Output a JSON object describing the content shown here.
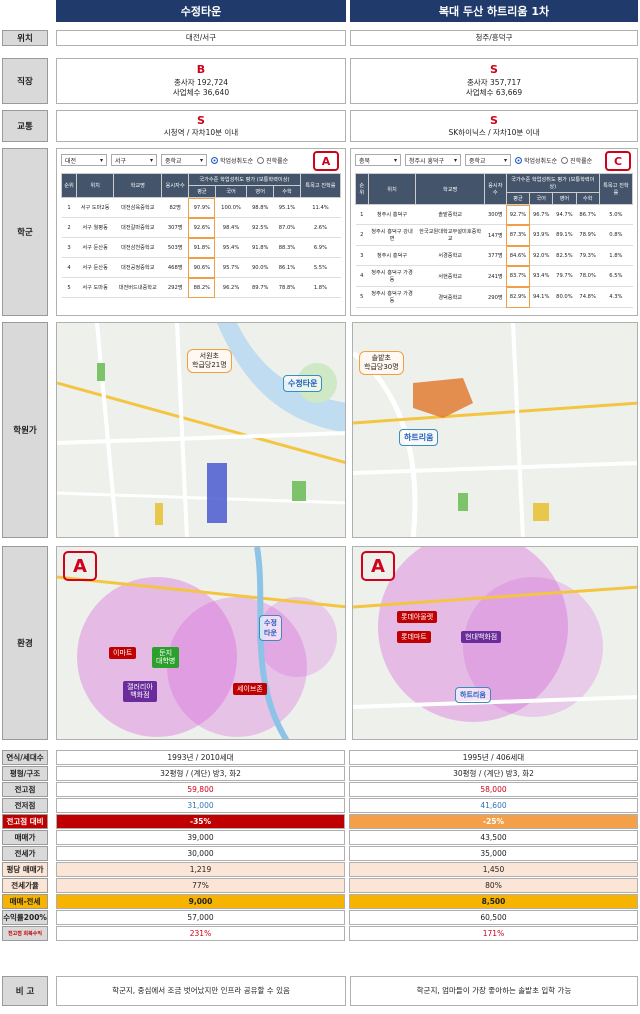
{
  "headers": {
    "left": "수정타운",
    "right": "복대 두산 하트리움 1차"
  },
  "labels": {
    "location": "위치",
    "job": "직장",
    "traffic": "교통",
    "school": "학군",
    "academy": "학원가",
    "environment": "환경"
  },
  "location": {
    "left": "대전/서구",
    "right": "청주/흥덕구"
  },
  "job": {
    "left": {
      "grade": "B",
      "employees": "종사자 192,724",
      "companies": "사업체수 36,640"
    },
    "right": {
      "grade": "S",
      "employees": "종사자 357,717",
      "companies": "사업체수 63,669"
    }
  },
  "traffic": {
    "left": {
      "grade": "S",
      "desc": "시청역 / 자차10분 이내"
    },
    "right": {
      "grade": "S",
      "desc": "SK하이닉스 / 자차10분 이내"
    }
  },
  "school": {
    "left": {
      "badge": "A",
      "filters": [
        "대전",
        "서구",
        "중학교"
      ],
      "radio_on": "학업성취도순",
      "radio_off": "진학률순",
      "head_group": "국가수준 학업성취도 평가 (보통학력이상)",
      "columns": [
        "순위",
        "위치",
        "학교명",
        "응시자수",
        "평균",
        "국어",
        "영어",
        "수학",
        "특목고 진학률"
      ],
      "rows": [
        [
          "1",
          "서구 도마2동",
          "대전삼육중학교",
          "82명",
          "97.9%",
          "100.0%",
          "98.8%",
          "95.1%",
          "11.4%"
        ],
        [
          "2",
          "서구 월평동",
          "대전갈마중학교",
          "307명",
          "92.6%",
          "98.4%",
          "92.5%",
          "87.0%",
          "2.6%"
        ],
        [
          "3",
          "서구 둔산동",
          "대전삼천중학교",
          "503명",
          "91.8%",
          "95.4%",
          "91.8%",
          "88.3%",
          "6.9%"
        ],
        [
          "4",
          "서구 둔산동",
          "대전공정중학교",
          "468명",
          "90.6%",
          "95.7%",
          "90.0%",
          "86.1%",
          "5.5%"
        ],
        [
          "5",
          "서구 도마동",
          "대전버드내중학교",
          "292명",
          "88.2%",
          "96.2%",
          "89.7%",
          "78.8%",
          "1.8%"
        ]
      ]
    },
    "right": {
      "badge": "C",
      "filters": [
        "충북",
        "청주시 흥덕구",
        "중학교"
      ],
      "radio_on": "학업성취도순",
      "radio_off": "진학률순",
      "head_group": "국가수준 학업성취도 평가 (보통학력이상)",
      "columns": [
        "순위",
        "위치",
        "학교명",
        "응시자수",
        "평균",
        "국어",
        "영어",
        "수학",
        "특목고 진학률"
      ],
      "rows": [
        [
          "1",
          "청주시 흥덕구",
          "솔밭중학교",
          "300명",
          "92.7%",
          "96.7%",
          "94.7%",
          "86.7%",
          "5.0%"
        ],
        [
          "2",
          "청주시 흥덕구 강내면",
          "한국교원대학교부설미호중학교",
          "147명",
          "87.3%",
          "93.9%",
          "89.1%",
          "78.9%",
          "0.8%"
        ],
        [
          "3",
          "청주시 흥덕구",
          "서경중학교",
          "377명",
          "84.6%",
          "92.0%",
          "82.5%",
          "79.3%",
          "1.8%"
        ],
        [
          "4",
          "청주시 흥덕구 가경동",
          "서현중학교",
          "241명",
          "83.7%",
          "93.4%",
          "79.7%",
          "78.0%",
          "6.5%"
        ],
        [
          "5",
          "청주시 흥덕구 가경동",
          "경덕중학교",
          "290명",
          "82.9%",
          "94.1%",
          "80.0%",
          "74.8%",
          "4.3%"
        ]
      ]
    }
  },
  "academy": {
    "left": {
      "callout": "서원초\n학급당21명",
      "complex": "수정타운"
    },
    "right": {
      "callout": "솔밭초\n학급당30명",
      "complex": "하트리움"
    }
  },
  "environment": {
    "left": {
      "badge": "A",
      "tags": [
        "이마트",
        "홈플러스",
        "롯데백화점",
        "갤러리아\n백화점",
        "세이브존",
        "둔지\n대학병"
      ],
      "complex": "수정\n타운"
    },
    "right": {
      "badge": "A",
      "tags": [
        "롯데아울렛",
        "롯데마트",
        "현대백화점"
      ],
      "complex": "하트리움"
    }
  },
  "rows": [
    {
      "label": "연식/세대수",
      "left": "1993년 / 2010세대",
      "right": "1995년 / 406세대"
    },
    {
      "label": "평형/구조",
      "left": "32평형 / (계단) 방3, 화2",
      "right": "30평형 / (계단) 방3, 화2"
    },
    {
      "label": "전고점",
      "left": "59,800",
      "right": "58,000"
    },
    {
      "label": "전저점",
      "left": "31,000",
      "right": "41,600"
    },
    {
      "label": "전고점 대비",
      "left": "-35%",
      "right": "-25%"
    },
    {
      "label": "매매가",
      "left": "39,000",
      "right": "43,500"
    },
    {
      "label": "전세가",
      "left": "30,000",
      "right": "35,000"
    },
    {
      "label": "평당 매매가",
      "left": "1,219",
      "right": "1,450"
    },
    {
      "label": "전세가율",
      "left": "77%",
      "right": "80%"
    },
    {
      "label": "매매-전세",
      "left": "9,000",
      "right": "8,500"
    },
    {
      "label": "수익률200%",
      "left": "57,000",
      "right": "60,500"
    },
    {
      "label": "전고점 회복수익",
      "left": "231%",
      "right": "171%"
    }
  ],
  "note": {
    "label": "비 고",
    "left": "학군지, 중심에서 조금 벗어났지만 인프라 공유할 수 있음",
    "right": "학군지, 엄마들이 가장 좋아하는 솔밭초 입학 가능"
  }
}
